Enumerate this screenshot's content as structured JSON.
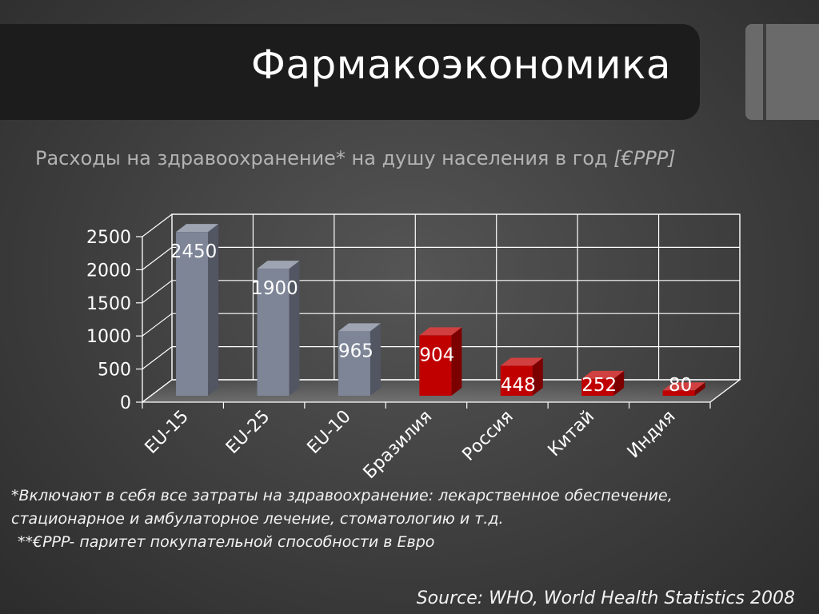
{
  "title": "Фармакоэкономика",
  "subtitle": {
    "text": "Расходы на здравоохранение* на душу населения в год ",
    "unit": "[€PPP]"
  },
  "notes": [
    "*Включают в себя все затраты  на здравоохранение: лекарственное обеспечение,",
    "стационарное и амбулаторное лечение, стоматологию и т.д.",
    " **€PPP- паритет покупательной  способности в Евро"
  ],
  "source": "Source: WHO, World Health Statistics  2008",
  "chart_data": {
    "type": "bar",
    "categories": [
      "EU-15",
      "EU-25",
      "EU-10",
      "Бразилия",
      "Россия",
      "Китай",
      "Индия"
    ],
    "values": [
      2450,
      1900,
      965,
      904,
      448,
      252,
      80
    ],
    "data_labels": [
      "2450",
      "1900",
      "965",
      "904",
      "448",
      "252",
      "80"
    ],
    "yticks": [
      "0",
      "500",
      "1000",
      "1500",
      "2000",
      "2500"
    ],
    "ylim": [
      0,
      2500
    ],
    "grid": true,
    "legend": "none",
    "bar_colors": [
      "#7e8597",
      "#7e8597",
      "#7e8597",
      "#c00000",
      "#c00000",
      "#c00000",
      "#c00000"
    ]
  }
}
